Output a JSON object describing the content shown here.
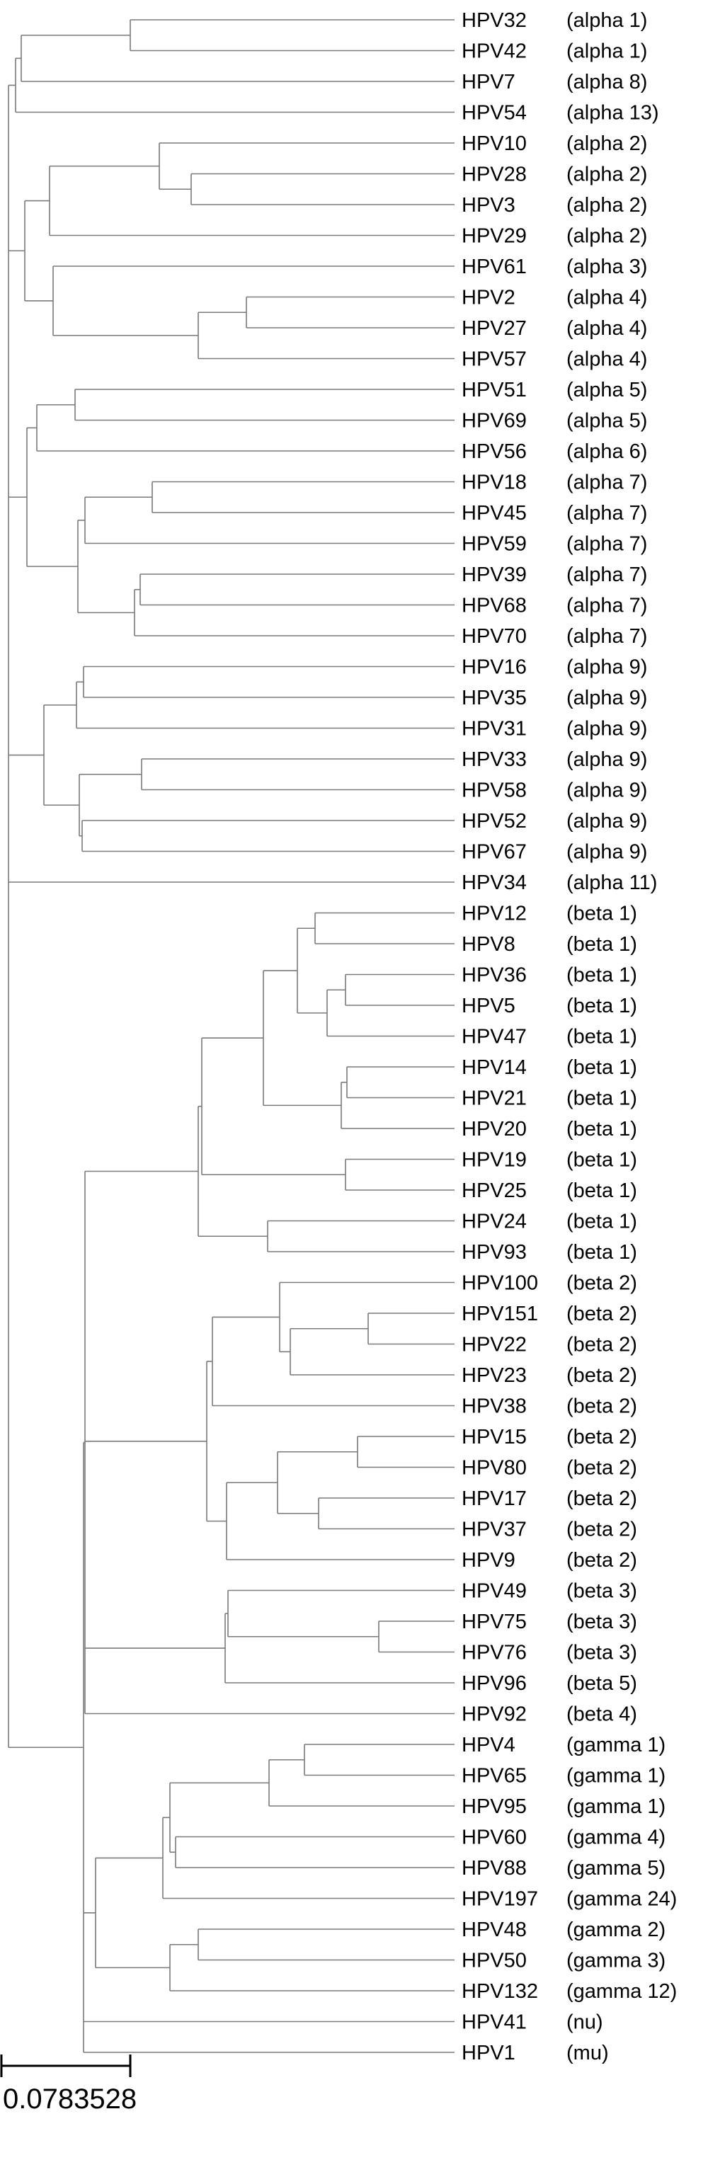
{
  "colors": {
    "branch": "#7a7a7a",
    "text": "#000000",
    "scale_bar": "#000000"
  },
  "leaves": [
    {
      "name": "HPV32",
      "group": "(alpha 1)"
    },
    {
      "name": "HPV42",
      "group": "(alpha 1)"
    },
    {
      "name": "HPV7",
      "group": "(alpha 8)"
    },
    {
      "name": "HPV54",
      "group": "(alpha 13)"
    },
    {
      "name": "HPV10",
      "group": "(alpha 2)"
    },
    {
      "name": "HPV28",
      "group": "(alpha 2)"
    },
    {
      "name": "HPV3",
      "group": "(alpha 2)"
    },
    {
      "name": "HPV29",
      "group": "(alpha 2)"
    },
    {
      "name": "HPV61",
      "group": "(alpha 3)"
    },
    {
      "name": "HPV2",
      "group": "(alpha 4)"
    },
    {
      "name": "HPV27",
      "group": "(alpha 4)"
    },
    {
      "name": "HPV57",
      "group": "(alpha 4)"
    },
    {
      "name": "HPV51",
      "group": "(alpha 5)"
    },
    {
      "name": "HPV69",
      "group": "(alpha 5)"
    },
    {
      "name": "HPV56",
      "group": "(alpha 6)"
    },
    {
      "name": "HPV18",
      "group": "(alpha 7)"
    },
    {
      "name": "HPV45",
      "group": "(alpha 7)"
    },
    {
      "name": "HPV59",
      "group": "(alpha 7)"
    },
    {
      "name": "HPV39",
      "group": "(alpha 7)"
    },
    {
      "name": "HPV68",
      "group": "(alpha 7)"
    },
    {
      "name": "HPV70",
      "group": "(alpha 7)"
    },
    {
      "name": "HPV16",
      "group": "(alpha 9)"
    },
    {
      "name": "HPV35",
      "group": "(alpha 9)"
    },
    {
      "name": "HPV31",
      "group": "(alpha 9)"
    },
    {
      "name": "HPV33",
      "group": "(alpha 9)"
    },
    {
      "name": "HPV58",
      "group": "(alpha 9)"
    },
    {
      "name": "HPV52",
      "group": "(alpha 9)"
    },
    {
      "name": "HPV67",
      "group": "(alpha 9)"
    },
    {
      "name": "HPV34",
      "group": "(alpha 11)"
    },
    {
      "name": "HPV12",
      "group": "(beta 1)"
    },
    {
      "name": "HPV8",
      "group": "(beta 1)"
    },
    {
      "name": "HPV36",
      "group": "(beta 1)"
    },
    {
      "name": "HPV5",
      "group": "(beta 1)"
    },
    {
      "name": "HPV47",
      "group": "(beta 1)"
    },
    {
      "name": "HPV14",
      "group": "(beta 1)"
    },
    {
      "name": "HPV21",
      "group": "(beta 1)"
    },
    {
      "name": "HPV20",
      "group": "(beta 1)"
    },
    {
      "name": "HPV19",
      "group": "(beta 1)"
    },
    {
      "name": "HPV25",
      "group": "(beta 1)"
    },
    {
      "name": "HPV24",
      "group": "(beta 1)"
    },
    {
      "name": "HPV93",
      "group": "(beta 1)"
    },
    {
      "name": "HPV100",
      "group": "(beta 2)"
    },
    {
      "name": "HPV151",
      "group": "(beta 2)"
    },
    {
      "name": "HPV22",
      "group": "(beta 2)"
    },
    {
      "name": "HPV23",
      "group": "(beta 2)"
    },
    {
      "name": "HPV38",
      "group": "(beta 2)"
    },
    {
      "name": "HPV15",
      "group": "(beta 2)"
    },
    {
      "name": "HPV80",
      "group": "(beta 2)"
    },
    {
      "name": "HPV17",
      "group": "(beta 2)"
    },
    {
      "name": "HPV37",
      "group": "(beta 2)"
    },
    {
      "name": "HPV9",
      "group": "(beta 2)"
    },
    {
      "name": "HPV49",
      "group": "(beta 3)"
    },
    {
      "name": "HPV75",
      "group": "(beta 3)"
    },
    {
      "name": "HPV76",
      "group": "(beta 3)"
    },
    {
      "name": "HPV96",
      "group": "(beta 5)"
    },
    {
      "name": "HPV92",
      "group": "(beta 4)"
    },
    {
      "name": "HPV4",
      "group": "(gamma 1)"
    },
    {
      "name": "HPV65",
      "group": "(gamma 1)"
    },
    {
      "name": "HPV95",
      "group": "(gamma 1)"
    },
    {
      "name": "HPV60",
      "group": "(gamma 4)"
    },
    {
      "name": "HPV88",
      "group": "(gamma 5)"
    },
    {
      "name": "HPV197",
      "group": "(gamma 24)"
    },
    {
      "name": "HPV48",
      "group": "(gamma 2)"
    },
    {
      "name": "HPV50",
      "group": "(gamma 3)"
    },
    {
      "name": "HPV132",
      "group": "(gamma 12)"
    },
    {
      "name": "HPV41",
      "group": "(nu)"
    },
    {
      "name": "HPV1",
      "group": "(mu)"
    }
  ],
  "scale_bar": {
    "label": "0.0783528",
    "length": 0.0783528
  }
}
